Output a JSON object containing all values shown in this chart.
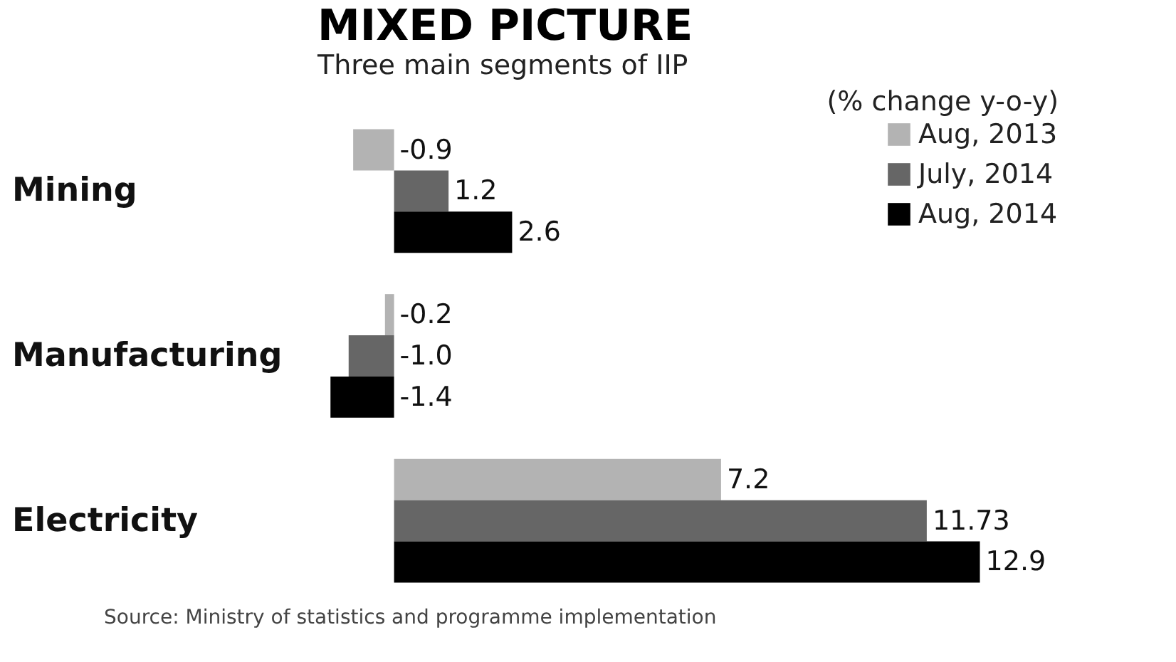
{
  "chart_data": {
    "type": "bar",
    "orientation": "horizontal",
    "title": "MIXED PICTURE",
    "subtitle": "Three main segments of IIP",
    "xlabel": "(% change y-o-y)",
    "categories": [
      "Mining",
      "Manufacturing",
      "Electricity"
    ],
    "series": [
      {
        "name": "Aug, 2013",
        "color": "#b3b3b3",
        "values": [
          -0.9,
          -0.2,
          7.2
        ],
        "value_labels": [
          "-0.9",
          "-0.2",
          "7.2"
        ]
      },
      {
        "name": "July, 2014",
        "color": "#666666",
        "values": [
          1.2,
          -1.0,
          11.73
        ],
        "value_labels": [
          "1.2",
          "-1.0",
          "11.73"
        ]
      },
      {
        "name": "Aug, 2014",
        "color": "#000000",
        "values": [
          2.6,
          -1.4,
          12.9
        ],
        "value_labels": [
          "2.6",
          "-1.4",
          "12.9"
        ]
      }
    ],
    "legend": "top right",
    "tick_labels": "y",
    "annotations": [
      "Source: Ministry of statistics and programme implementation"
    ]
  }
}
